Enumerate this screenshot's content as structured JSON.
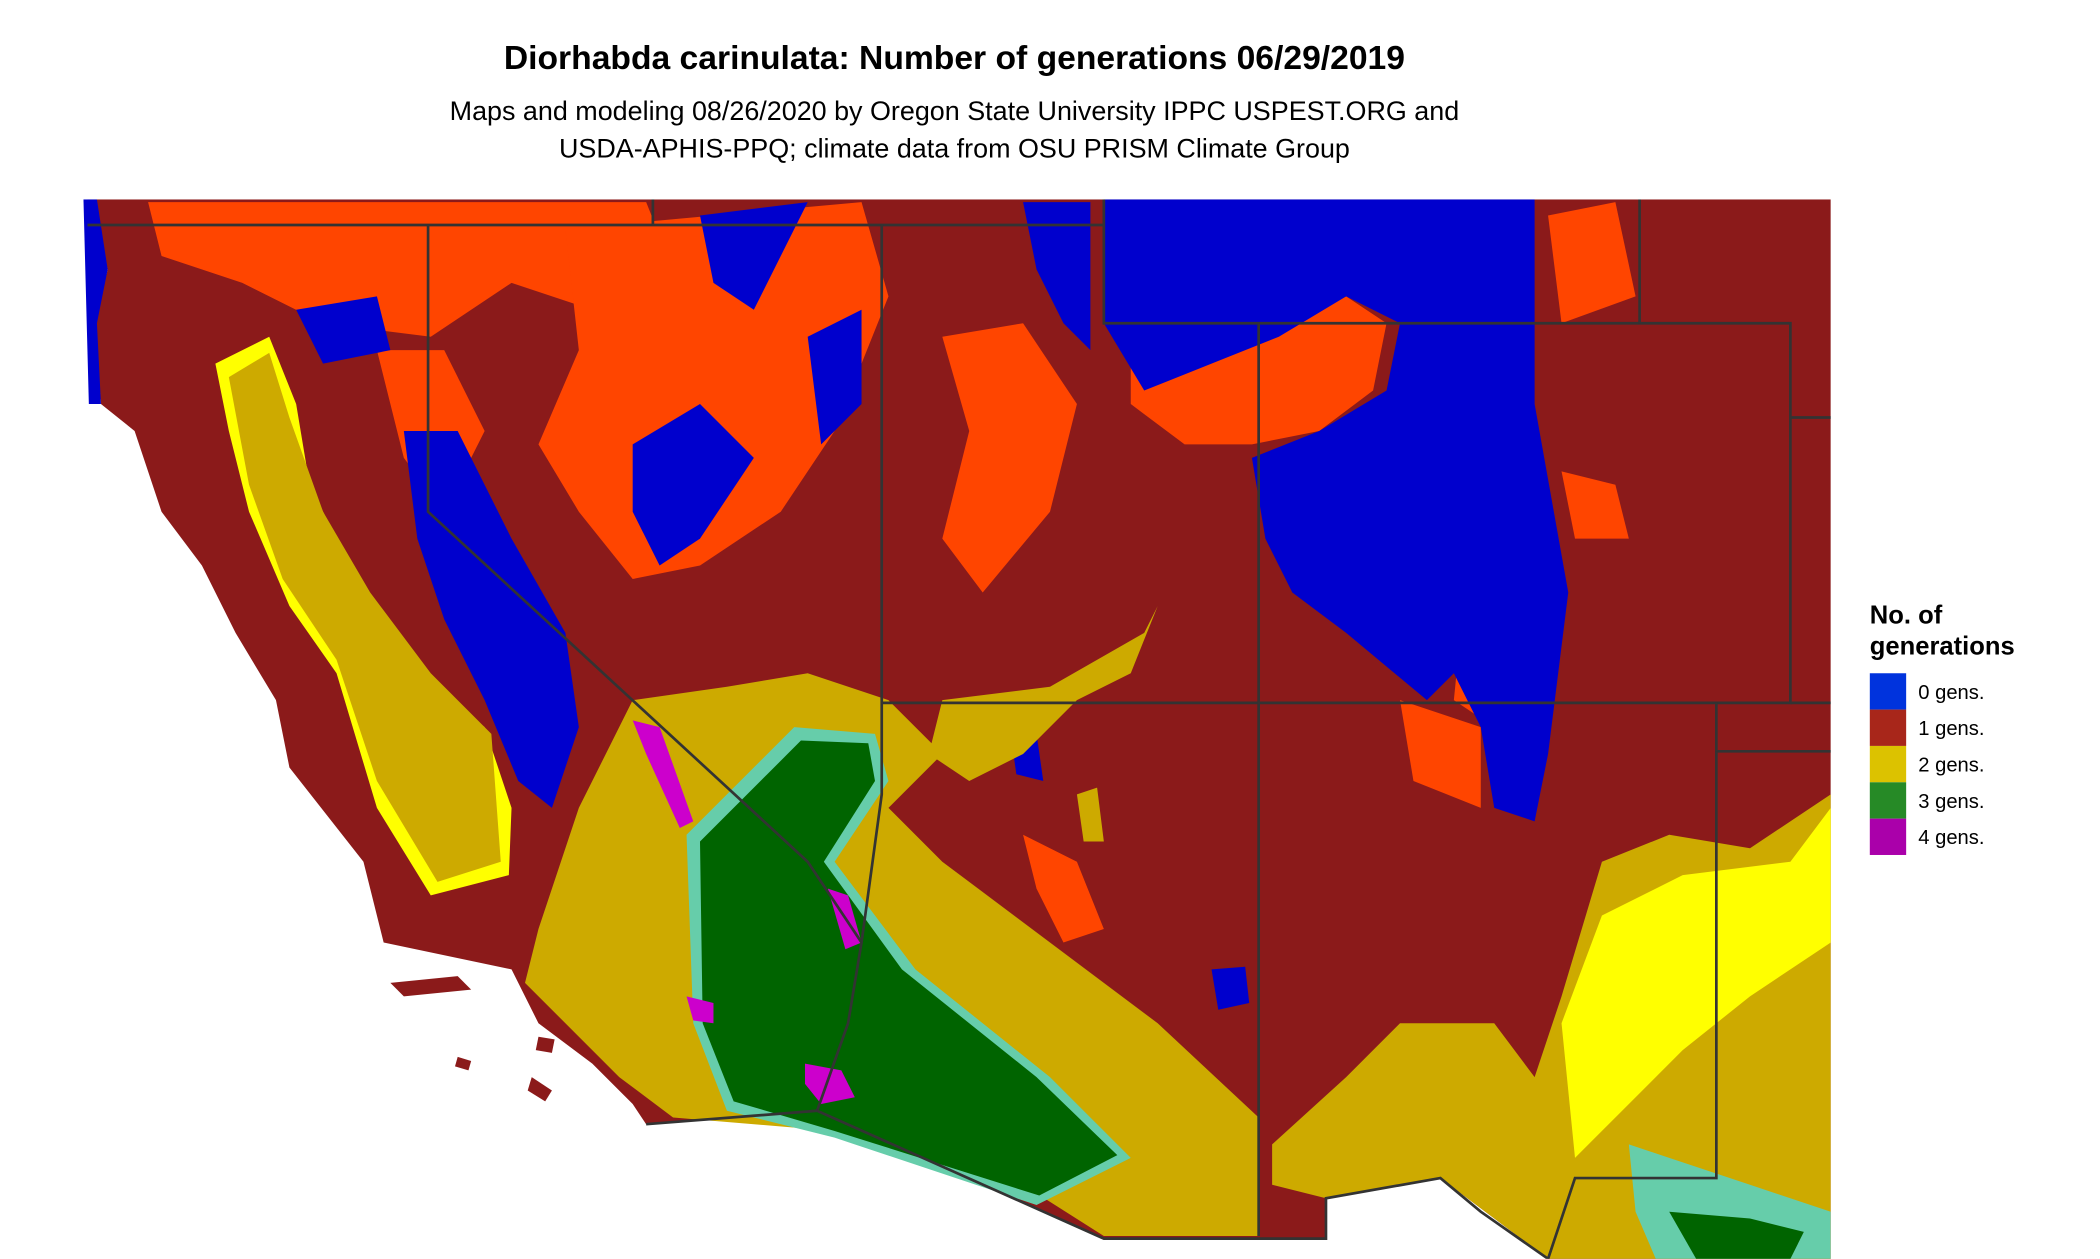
{
  "title": "Diorhabda carinulata: Number of generations 06/29/2019",
  "subtitle_line1": "Maps and modeling 08/26/2020 by Oregon State University IPPC USPEST.ORG and",
  "subtitle_line2": "USDA-APHIS-PPQ; climate data from OSU PRISM Climate Group",
  "legend": {
    "title_line1": "No. of",
    "title_line2": "generations",
    "items": [
      {
        "label": "0 gens.",
        "color": "#0033dd"
      },
      {
        "label": "1 gens.",
        "color": "#a8261a"
      },
      {
        "label": "2 gens.",
        "color": "#dcc200"
      },
      {
        "label": "3 gens.",
        "color": "#268a26"
      },
      {
        "label": "4 gens.",
        "color": "#aa00aa"
      }
    ]
  },
  "map_colors": {
    "zero": "#0000cd",
    "one": "#8b1a1a",
    "one_light": "#ff4500",
    "two": "#cdaa00",
    "two_light": "#ffff00",
    "three": "#006400",
    "three_light": "#66cdaa",
    "four": "#cc00cc"
  }
}
